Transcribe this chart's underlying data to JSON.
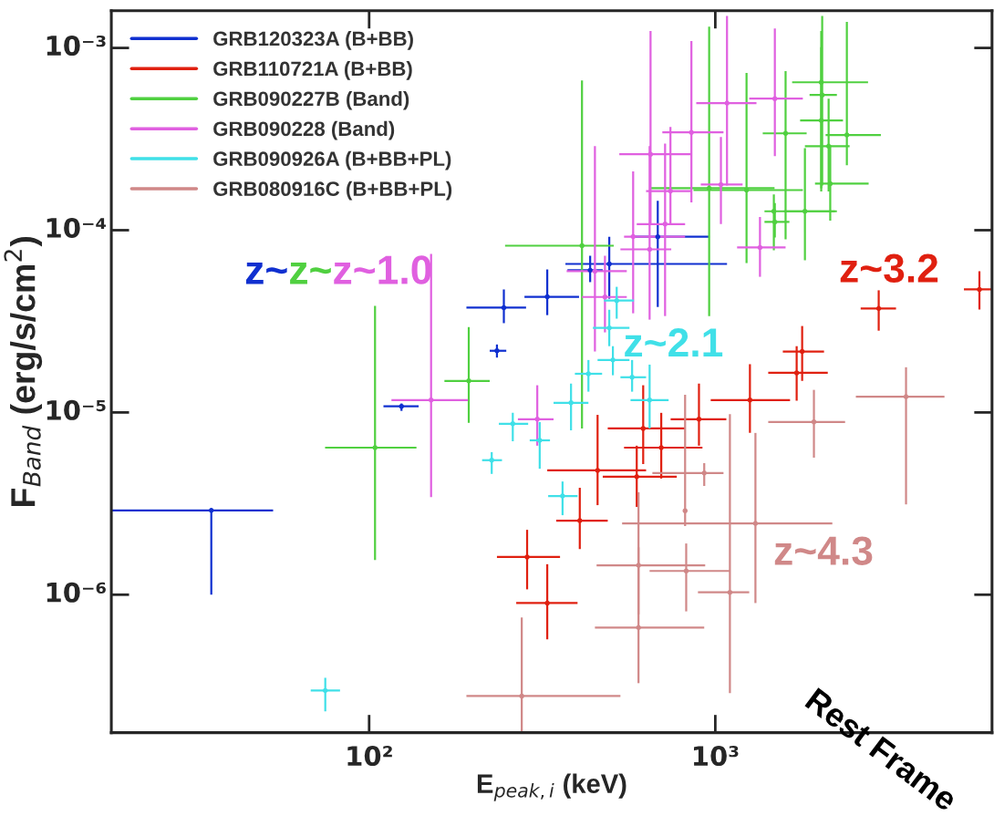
{
  "chart_data": {
    "type": "scatter",
    "xlabel": "E$_{peak,i}$ (keV)",
    "ylabel": "F$_{Band}$ (erg/s/cm$^{2}$)",
    "log": "xy",
    "xlim": [
      18,
      6300
    ],
    "ylim": [
      1.75e-07,
      0.0016
    ],
    "xticks": [
      {
        "value": 100,
        "label": "10²"
      },
      {
        "value": 1000,
        "label": "10³"
      }
    ],
    "yticks": [
      {
        "value": 1e-06,
        "label": "10⁻⁶"
      },
      {
        "value": 1e-05,
        "label": "10⁻⁵"
      },
      {
        "value": 0.0001,
        "label": "10⁻⁴"
      },
      {
        "value": 0.001,
        "label": "10⁻³"
      }
    ],
    "grid": false,
    "legend": "top left",
    "series": [
      {
        "name": "GRB120323A (B+BB)",
        "color": "#1030d0",
        "x": [
          35,
          124,
          234,
          245,
          327,
          435,
          494,
          682
        ],
        "values": [
          2.9e-06,
          1.08e-05,
          2.18e-05,
          3.76e-05,
          4.31e-05,
          6.03e-05,
          6.53e-05,
          9.2e-05
        ],
        "xerrors": [
          [
            18,
            52.8
          ],
          [
            110,
            139
          ],
          [
            223,
            249
          ],
          [
            191,
            284
          ],
          [
            281,
            404
          ],
          [
            374,
            473
          ],
          [
            369,
            1081
          ],
          [
            579,
            957
          ]
        ],
        "errors": [
          [
            1e-06,
            2.9e-06
          ],
          [
            1.02e-05,
            1.12e-05
          ],
          [
            2e-05,
            2.36e-05
          ],
          [
            3.09e-05,
            4.73e-05
          ],
          [
            3.42e-05,
            6.09e-05
          ],
          [
            5.19e-05,
            7.24e-05
          ],
          [
            4.21e-05,
            9.2e-05
          ],
          [
            3.79e-05,
            0.000145
          ]
        ]
      },
      {
        "name": "GRB110721A (B+BB)",
        "color": "#e02010",
        "x": [
          286,
          327,
          406,
          457,
          593,
          619,
          698,
          897,
          1259,
          1718,
          1782,
          2965,
          5794
        ],
        "values": [
          1.61e-06,
          9e-07,
          2.55e-06,
          4.81e-06,
          4.44e-06,
          8.17e-06,
          6.41e-06,
          9.18e-06,
          1.17e-05,
          1.65e-05,
          2.16e-05,
          3.72e-05,
          4.73e-05
        ],
        "xerrors": [
          [
            234,
            356
          ],
          [
            266,
            400
          ],
          [
            347,
            489
          ],
          [
            327,
            631
          ],
          [
            473,
            774
          ],
          [
            489,
            818
          ],
          [
            545,
            918
          ],
          [
            743,
            1076
          ],
          [
            970,
            1644
          ],
          [
            1422,
            2113
          ],
          [
            1567,
            2061
          ],
          [
            2630,
            3327
          ],
          [
            5227,
            6300
          ]
        ],
        "errors": [
          [
            1.07e-06,
            2.27e-06
          ],
          [
            5.69e-07,
            1.47e-06
          ],
          [
            1.78e-06,
            3.86e-06
          ],
          [
            3.1e-06,
            9.7e-06
          ],
          [
            3.03e-06,
            6.57e-06
          ],
          [
            5.21e-06,
            1.41e-05
          ],
          [
            4.34e-06,
            9.95e-06
          ],
          [
            6.57e-06,
            1.44e-05
          ],
          [
            7.73e-06,
            1.84e-05
          ],
          [
            1.16e-05,
            2.31e-05
          ],
          [
            1.49e-05,
            2.98e-05
          ],
          [
            2.81e-05,
            4.68e-05
          ],
          [
            3.67e-05,
            5.96e-05
          ]
        ]
      },
      {
        "name": "GRB090227B (Band)",
        "color": "#50d040",
        "x": [
          104,
          194,
          412,
          960,
          1231,
          1476,
          1596,
          1815,
          2023,
          2036,
          2023,
          2399,
          2125,
          2148,
          1486
        ],
        "values": [
          6.41e-06,
          1.49e-05,
          8.22e-05,
          0.00017,
          0.000166,
          0.000127,
          0.00034,
          0.000127,
          0.000648,
          0.000552,
          0.0004,
          0.000333,
          0.000289,
          0.00018,
          0.000111
        ],
        "xerrors": [
          [
            74.6,
            137
          ],
          [
            165,
            223
          ],
          [
            247,
            509
          ],
          [
            646,
            1483
          ],
          [
            865,
            1790
          ],
          [
            1387,
            2245
          ],
          [
            1371,
            1836
          ],
          [
            1578,
            2217
          ],
          [
            1667,
            2762
          ],
          [
            1872,
            2245
          ],
          [
            1758,
            2338
          ],
          [
            2083,
            3008
          ],
          [
            1815,
            2443
          ],
          [
            1941,
            2773
          ],
          [
            1387,
            1637
          ]
        ],
        "errors": [
          [
            1.55e-06,
            3.84e-05
          ],
          [
            8.77e-06,
            2.94e-05
          ],
          [
            8.17e-06,
            0.000664
          ],
          [
            3.38e-05,
            0.00131
          ],
          [
            6.6e-05,
            0.000729
          ],
          [
            7.76e-05,
            0.000157
          ],
          [
            8.91e-05,
            0.000746
          ],
          [
            6.84e-05,
            0.000282
          ],
          [
            0.000163,
            0.00101
          ],
          [
            0.000176,
            0.0015
          ],
          [
            0.00017,
            0.00124
          ],
          [
            0.000227,
            0.00139
          ],
          [
            0.000163,
            0.000527
          ],
          [
            0.000113,
            0.000293
          ],
          [
            9.12e-05,
            0.000141
          ]
        ]
      },
      {
        "name": "GRB090228 (Band)",
        "color": "#e060e0",
        "x": [
          151,
          306,
          1346,
          1486,
          1081,
          853,
          650,
          742,
          1038,
          716,
          646,
          449,
          579,
          480
        ],
        "values": [
          1.17e-05,
          9.18e-06,
          8.04e-05,
          0.000527,
          0.000498,
          0.000344,
          0.000261,
          0.000164,
          0.000178,
          0.000108,
          7.85e-05,
          5.96e-05,
          9.22e-05,
          4.3e-05
        ],
        "xerrors": [
          [
            116,
            193
          ],
          [
            269,
            341
          ],
          [
            1156,
            1596
          ],
          [
            1253,
            1790
          ],
          [
            881,
            1315
          ],
          [
            703,
            1056
          ],
          [
            528,
            853
          ],
          [
            631,
            853
          ],
          [
            908,
            1199
          ],
          [
            593,
            818
          ],
          [
            532,
            746
          ],
          [
            372,
            555
          ],
          [
            545,
            818
          ],
          [
            412,
            555
          ]
        ],
        "errors": [
          [
            3.43e-06,
            7.41e-05
          ],
          [
            6.57e-06,
            1.41e-05
          ],
          [
            5.55e-05,
            0.000118
          ],
          [
            0.000255,
            0.00128
          ],
          [
            0.000176,
            0.0015
          ],
          [
            0.000142,
            0.00109
          ],
          [
            0.000108,
            0.00124
          ],
          [
            0.000108,
            0.000369
          ],
          [
            0.000108,
            0.000325
          ],
          [
            3.38e-05,
            0.000299
          ],
          [
            3.23e-05,
            0.000289
          ],
          [
            2.16e-05,
            0.000289
          ],
          [
            3.5e-05,
            0.00021
          ],
          [
            2.75e-05,
            7.24e-05
          ]
        ]
      },
      {
        "name": "GRB090926A (B+BB+PL)",
        "color": "#40e0e8",
        "x": [
          74.7,
          226,
          260,
          311,
          362,
          383,
          646,
          575,
          430,
          506,
          494,
          519
        ],
        "values": [
          2.98e-07,
          5.47e-06,
          8.67e-06,
          7.03e-06,
          3.48e-06,
          1.13e-05,
          1.17e-05,
          1.56e-05,
          1.63e-05,
          1.94e-05,
          2.91e-05,
          4.11e-05
        ],
        "xerrors": [
          [
            67.8,
            82.4
          ],
          [
            212,
            242
          ],
          [
            237,
            288
          ],
          [
            291,
            333
          ],
          [
            329,
            400
          ],
          [
            341,
            430
          ],
          [
            569,
            733
          ],
          [
            532,
            631
          ],
          [
            393,
            471
          ],
          [
            457,
            565
          ],
          [
            443,
            565
          ],
          [
            477,
            582
          ]
        ],
        "errors": [
          [
            2.29e-07,
            3.5e-07
          ],
          [
            4.6e-06,
            6.06e-06
          ],
          [
            6.95e-06,
            9.96e-06
          ],
          [
            4.91e-06,
            8.85e-06
          ],
          [
            2.73e-06,
            4.18e-06
          ],
          [
            7.98e-06,
            1.44e-05
          ],
          [
            8.17e-06,
            1.83e-05
          ],
          [
            1.3e-05,
            1.94e-05
          ],
          [
            1.3e-05,
            1.94e-05
          ],
          [
            1.6e-05,
            2.31e-05
          ],
          [
            2.31e-05,
            3.66e-05
          ],
          [
            3.27e-05,
            4.89e-05
          ]
        ]
      },
      {
        "name": "GRB080916C (B+BB+PL)",
        "color": "#d08888",
        "x": [
          3556,
          1927,
          929,
          276,
          1306,
          1102,
          824,
          600,
          600,
          818
        ],
        "values": [
          1.22e-05,
          8.87e-06,
          4.65e-06,
          2.78e-07,
          2.46e-06,
          1.03e-06,
          1.35e-06,
          1.45e-06,
          6.6e-07,
          2.89e-06
        ],
        "xerrors": [
          [
            2547,
            4592
          ],
          [
            1422,
            2371
          ],
          [
            658,
            1056
          ],
          [
            191,
            532
          ],
          [
            538,
            2178
          ],
          [
            891,
            1253
          ],
          [
            646,
            1102
          ],
          [
            454,
            935
          ],
          [
            449,
            929
          ],
          null
        ],
        "errors": [
          [
            3.13e-06,
            1.77e-05
          ],
          [
            5.65e-06,
            1.33e-05
          ],
          [
            3.95e-06,
            5.27e-06
          ],
          [
            1.75e-07,
            7.5e-07
          ],
          [
            9e-07,
            7.72e-06
          ],
          [
            2.88e-07,
            9.8e-06
          ],
          [
            8.1e-07,
            1.91e-06
          ],
          [
            7.8e-07,
            3.65e-06
          ],
          [
            3.27e-07,
            1.82e-06
          ],
          [
            2.38e-06,
            1.25e-05
          ]
        ]
      }
    ],
    "annotations": [
      "z~",
      "z~",
      "z~1.0",
      "z~2.1",
      "z~3.2",
      "z~4.3",
      "Rest Frame"
    ]
  }
}
